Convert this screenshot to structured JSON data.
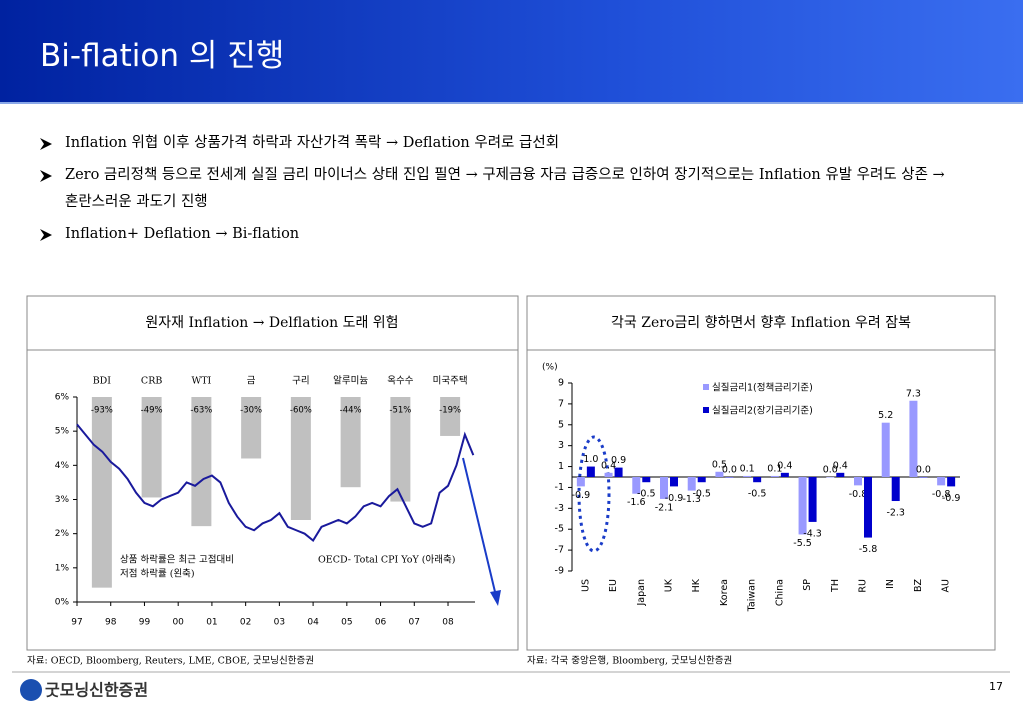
{
  "header": {
    "title": "Bi-flation 의 진행"
  },
  "bullets": [
    "Inflation 위협 이후 상품가격 하락과 자산가격 폭락 → Deflation 우려로 급선회",
    "Zero 금리정책 등으로 전세계 실질 금리 마이너스 상태 진입 필연 → 구제금융 자금 급증으로 인하여 장기적으로는 Inflation 유발 우려도 상존 → 혼란스러운 과도기 진행",
    "Inflation+ Deflation → Bi-flation"
  ],
  "chart_data": [
    {
      "type": "combo",
      "title": "원자재 Inflation → Delflation 도래 위험",
      "categories": [
        "BDI",
        "CRB",
        "WTI",
        "금",
        "구리",
        "알루미늄",
        "옥수수",
        "미국주택"
      ],
      "values": [
        -93,
        -49,
        -63,
        -30,
        -60,
        -44,
        -51,
        -19
      ],
      "value_labels": [
        "-93%",
        "-49%",
        "-63%",
        "-30%",
        "-60%",
        "-44%",
        "-51%",
        "-19%"
      ],
      "color": "#c0c0c0",
      "axis": "y2",
      "y2lim": [
        -100,
        0
      ],
      "line": {
        "color": "#1a1a9c",
        "x": [
          1997,
          1997.25,
          1997.5,
          1997.75,
          1998,
          1998.25,
          1998.5,
          1998.75,
          1999,
          1999.25,
          1999.5,
          1999.75,
          2000,
          2000.25,
          2000.5,
          2000.75,
          2001,
          2001.25,
          2001.5,
          2001.75,
          2002,
          2002.25,
          2002.5,
          2002.75,
          2003,
          2003.25,
          2003.5,
          2003.75,
          2004,
          2004.25,
          2004.5,
          2004.75,
          2005,
          2005.25,
          2005.5,
          2005.75,
          2006,
          2006.25,
          2006.5,
          2006.75,
          2007,
          2007.25,
          2007.5,
          2007.75,
          2008,
          2008.25,
          2008.5,
          2008.75
        ],
        "values": [
          5.2,
          4.9,
          4.6,
          4.4,
          4.1,
          3.9,
          3.6,
          3.2,
          2.9,
          2.8,
          3.0,
          3.1,
          3.2,
          3.5,
          3.4,
          3.6,
          3.7,
          3.5,
          2.9,
          2.5,
          2.2,
          2.1,
          2.3,
          2.4,
          2.6,
          2.2,
          2.1,
          2.0,
          1.8,
          2.2,
          2.3,
          2.4,
          2.3,
          2.5,
          2.8,
          2.9,
          2.8,
          3.1,
          3.3,
          2.8,
          2.3,
          2.2,
          2.3,
          3.2,
          3.4,
          4.0,
          4.9,
          4.3
        ]
      },
      "ylim": [
        0,
        6
      ],
      "yticks": [
        {
          "value": 0,
          "label": "0%"
        },
        {
          "value": 1,
          "label": "1%"
        },
        {
          "value": 2,
          "label": "2%"
        },
        {
          "value": 3,
          "label": "3%"
        },
        {
          "value": 4,
          "label": "4%"
        },
        {
          "value": 5,
          "label": "5%"
        },
        {
          "value": 6,
          "label": "6%"
        }
      ],
      "xlim": [
        1997,
        2008.8
      ],
      "xticks": [
        {
          "value": 1997,
          "label": "97"
        },
        {
          "value": 1998,
          "label": "98"
        },
        {
          "value": 1999,
          "label": "99"
        },
        {
          "value": 2000,
          "label": "00"
        },
        {
          "value": 2001,
          "label": "01"
        },
        {
          "value": 2002,
          "label": "02"
        },
        {
          "value": 2003,
          "label": "03"
        },
        {
          "value": 2004,
          "label": "04"
        },
        {
          "value": 2005,
          "label": "05"
        },
        {
          "value": 2006,
          "label": "06"
        },
        {
          "value": 2007,
          "label": "07"
        },
        {
          "value": 2008,
          "label": "08"
        }
      ],
      "annotations": [
        "상품 하락률은 최근 고점대비",
        "저점 하락률 (왼축)",
        "OECD- Total CPI YoY (아래축)"
      ],
      "source": "자료: OECD, Bloomberg, Reuters, LME, CBOE, 굿모닝신한증권"
    },
    {
      "type": "bar",
      "title": "각국 Zero금리 향하면서 향후 Inflation 우려 잠복",
      "y_label": "(%)",
      "categories": [
        "US",
        "EU",
        "Japan",
        "UK",
        "HK",
        "Korea",
        "Taiwan",
        "China",
        "SP",
        "TH",
        "RU",
        "IN",
        "BZ",
        "AU"
      ],
      "series": [
        {
          "name": "실질금리1(정책금리기준)",
          "color": "#9999ff",
          "values": [
            -0.9,
            0.4,
            -1.6,
            -2.1,
            -1.3,
            0.5,
            0.1,
            0.1,
            -5.5,
            0.0,
            -0.8,
            5.2,
            7.3,
            -0.8
          ],
          "value_labels": [
            "-0.9",
            "0.4",
            "-1.6",
            "-2.1",
            "-1.3",
            "0.5",
            "0.1",
            "0.1",
            "-5.5",
            "0.0",
            "-0.8",
            "5.2",
            "7.3",
            "-0.8"
          ]
        },
        {
          "name": "실질금리2(장기금리기준)",
          "color": "#0000cc",
          "values": [
            1.0,
            0.9,
            -0.5,
            -0.9,
            -0.5,
            0.0,
            -0.5,
            0.4,
            -4.3,
            0.4,
            -5.8,
            -2.3,
            0.0,
            -0.9
          ],
          "value_labels": [
            "1.0",
            "0.9",
            "-0.5",
            "-0.9",
            "-0.5",
            "0.0",
            "-0.5",
            "0.4",
            "-4.3",
            "0.4",
            "-5.8",
            "-2.3",
            "0.0",
            "-0.9"
          ]
        }
      ],
      "ylim": [
        -9,
        9
      ],
      "yticks": [
        -9,
        -7,
        -5,
        -3,
        -1,
        1,
        3,
        5,
        7,
        9
      ],
      "source": "자료: 각국 중앙은행, Bloomberg, 굿모닝신한증권"
    }
  ],
  "footer": {
    "logo": "굿모닝신한증권",
    "page": "17"
  }
}
